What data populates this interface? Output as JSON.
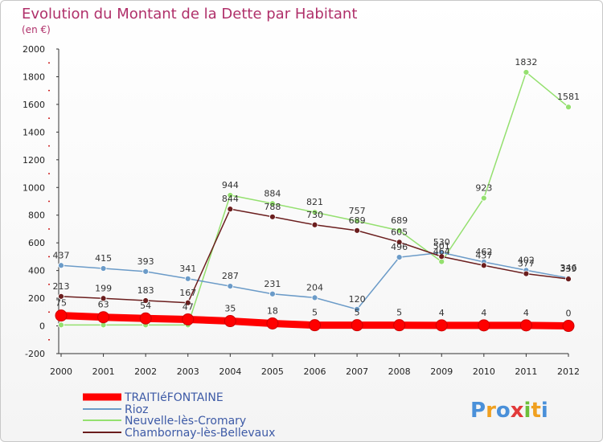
{
  "chart_data": {
    "type": "line",
    "title": "Evolution du Montant de la Dette par Habitant",
    "subtitle": "(en €)",
    "ylim": [
      -200,
      2000
    ],
    "yticks": [
      -200,
      0,
      200,
      400,
      600,
      800,
      1000,
      1200,
      1400,
      1600,
      1800,
      2000
    ],
    "x": [
      "2000",
      "2001",
      "2002",
      "2003",
      "2004",
      "2005",
      "2006",
      "2007",
      "2008",
      "2009",
      "2010",
      "2011",
      "2012"
    ],
    "grid": false,
    "legend_position": "bottom-left",
    "series": [
      {
        "name": "TRAITIéFONTAINE",
        "color": "#ff0000",
        "width": 9,
        "marker": 7,
        "values": [
          75,
          63,
          54,
          47,
          35,
          18,
          5,
          5,
          5,
          4,
          4,
          4,
          0
        ]
      },
      {
        "name": "Rioz",
        "color": "#6b9bc8",
        "width": 1.5,
        "marker": 3.5,
        "values": [
          437,
          415,
          393,
          341,
          287,
          231,
          204,
          120,
          496,
          530,
          462,
          402,
          346
        ]
      },
      {
        "name": "Neuvelle-lès-Cromary",
        "color": "#94e06f",
        "width": 1.5,
        "marker": 3.5,
        "values": [
          7,
          7,
          7,
          7,
          944,
          884,
          821,
          757,
          689,
          464,
          923,
          1832,
          1581
        ]
      },
      {
        "name": "Chambornay-lès-Bellevaux",
        "color": "#6b1e1e",
        "width": 1.5,
        "marker": 3.5,
        "values": [
          213,
          199,
          183,
          167,
          844,
          788,
          730,
          689,
          605,
          501,
          437,
          377,
          339
        ]
      }
    ],
    "data_labels": [
      {
        "series": 0,
        "values": [
          "75",
          "63",
          "54",
          "47",
          "35",
          "18",
          "5",
          "5",
          "5",
          "4",
          "4",
          "4",
          "0"
        ]
      },
      {
        "series": 1,
        "values": [
          "437",
          "415",
          "393",
          "341",
          "287",
          "231",
          "204",
          "120",
          "496",
          "530",
          "462",
          "402",
          "346"
        ]
      },
      {
        "series": 2,
        "values": [
          "",
          "",
          "",
          "",
          "944",
          "884",
          "821",
          "757",
          "689",
          "464",
          "923",
          "1832",
          "1581"
        ]
      },
      {
        "series": 3,
        "values": [
          "213",
          "199",
          "183",
          "167",
          "844",
          "788",
          "730",
          "689",
          "605",
          "501",
          "437",
          "377",
          "339"
        ]
      }
    ]
  },
  "brand": {
    "logo_text": "Proxiti"
  }
}
